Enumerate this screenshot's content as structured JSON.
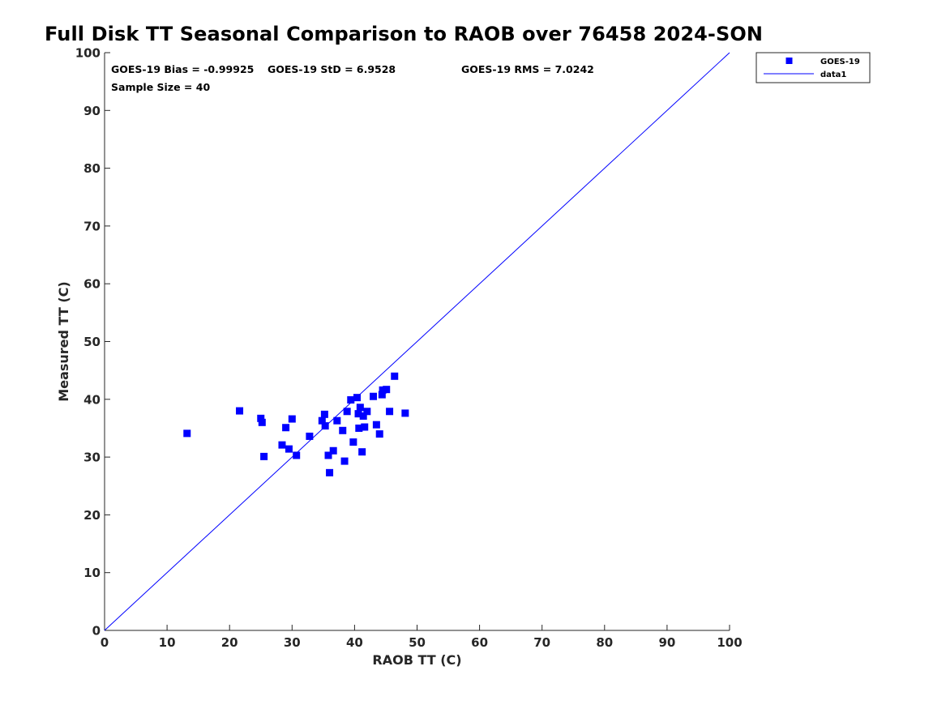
{
  "chart_data": {
    "type": "scatter",
    "title": "Full Disk TT Seasonal Comparison to RAOB over 76458 2024-SON",
    "xlabel": "RAOB TT (C)",
    "ylabel": "Measured TT (C)",
    "xlim": [
      0,
      100
    ],
    "ylim": [
      0,
      100
    ],
    "xticks": [
      "0",
      "10",
      "20",
      "30",
      "40",
      "50",
      "60",
      "70",
      "80",
      "90",
      "100"
    ],
    "yticks": [
      "0",
      "10",
      "20",
      "30",
      "40",
      "50",
      "60",
      "70",
      "80",
      "90",
      "100"
    ],
    "stats": {
      "bias": "GOES-19 Bias = -0.99925",
      "std": "GOES-19 StD = 6.9528",
      "rms": "GOES-19 RMS = 7.0242",
      "sample": "Sample Size = 40"
    },
    "legend_position": "outside-top-right",
    "series": [
      {
        "name": "GOES-19",
        "kind": "markers",
        "marker": "square",
        "color": "#0000ff",
        "points": [
          [
            13.2,
            34.1
          ],
          [
            21.6,
            38.0
          ],
          [
            25.0,
            36.7
          ],
          [
            25.2,
            36.0
          ],
          [
            25.5,
            30.1
          ],
          [
            28.4,
            32.1
          ],
          [
            29.0,
            35.1
          ],
          [
            29.5,
            31.4
          ],
          [
            30.0,
            36.6
          ],
          [
            30.7,
            30.3
          ],
          [
            32.8,
            33.6
          ],
          [
            34.8,
            36.3
          ],
          [
            35.2,
            37.4
          ],
          [
            35.3,
            35.4
          ],
          [
            35.8,
            30.3
          ],
          [
            36.0,
            27.3
          ],
          [
            36.6,
            31.1
          ],
          [
            37.2,
            36.3
          ],
          [
            38.1,
            34.6
          ],
          [
            38.4,
            29.3
          ],
          [
            38.8,
            37.9
          ],
          [
            39.4,
            39.9
          ],
          [
            39.8,
            32.6
          ],
          [
            40.4,
            40.3
          ],
          [
            40.6,
            37.5
          ],
          [
            40.7,
            35.0
          ],
          [
            40.9,
            38.6
          ],
          [
            41.2,
            30.9
          ],
          [
            41.4,
            37.1
          ],
          [
            41.6,
            35.2
          ],
          [
            42.0,
            37.9
          ],
          [
            43.0,
            40.5
          ],
          [
            43.5,
            35.6
          ],
          [
            44.0,
            34.0
          ],
          [
            44.4,
            40.8
          ],
          [
            44.5,
            41.6
          ],
          [
            45.1,
            41.7
          ],
          [
            45.6,
            37.9
          ],
          [
            46.4,
            44.0
          ],
          [
            48.1,
            37.6
          ]
        ]
      },
      {
        "name": "data1",
        "kind": "line",
        "color": "#0000ff",
        "points": [
          [
            0,
            0
          ],
          [
            100,
            100
          ]
        ]
      }
    ]
  }
}
